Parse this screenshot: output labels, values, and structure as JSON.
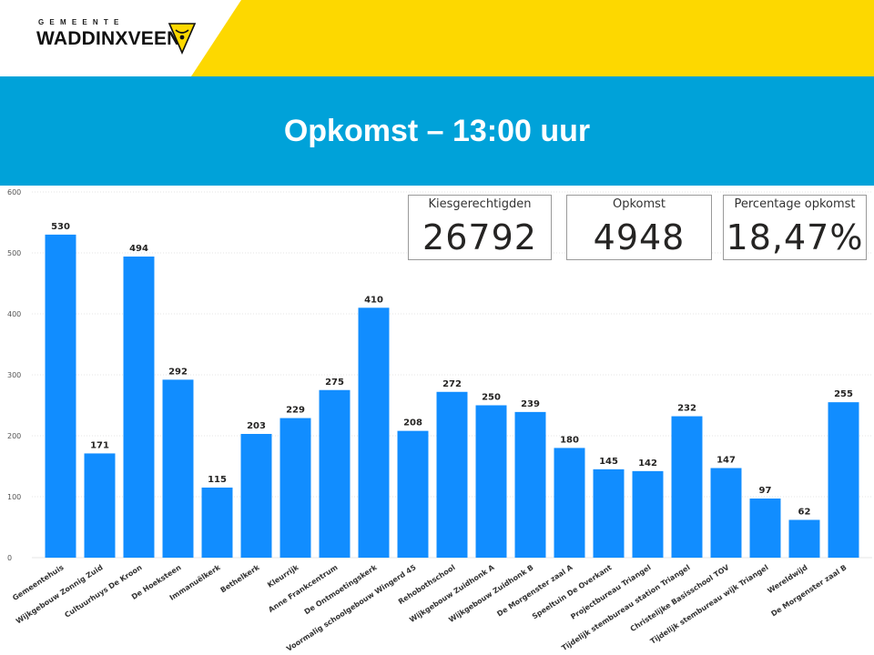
{
  "header": {
    "logo_small_text": "GEMEENTE",
    "logo_name": "WADDINXVEEN",
    "brand_yellow": "#fdd800",
    "brand_blue": "#00a2d9"
  },
  "title": "Opkomst – 13:00 uur",
  "kpis": [
    {
      "label": "Kiesgerechtigden",
      "value": "26792"
    },
    {
      "label": "Opkomst",
      "value": "4948"
    },
    {
      "label": "Percentage opkomst",
      "value": "18,47%"
    }
  ],
  "chart_data": {
    "type": "bar",
    "title": "",
    "xlabel": "",
    "ylabel": "",
    "ylim": [
      0,
      600
    ],
    "yticks": [
      0,
      100,
      200,
      300,
      400,
      500,
      600
    ],
    "grid": true,
    "bar_color": "#118dff",
    "categories": [
      "Gemeentehuis",
      "Wijkgebouw Zonnig Zuid",
      "Cultuurhuys De Kroon",
      "De Hoeksteen",
      "Immanuëlkerk",
      "Bethelkerk",
      "Kleurrijk",
      "Anne Frankcentrum",
      "De Ontmoetingskerk",
      "Voormalig schoolgebouw Wingerd 45",
      "Rehobothschool",
      "Wijkgebouw Zuidhonk A",
      "Wijkgebouw Zuidhonk B",
      "De Morgenster zaal A",
      "Speeltuin De Overkant",
      "Projectbureau Triangel",
      "Tijdelijk stembureau station Triangel",
      "Christelijke Basisschool TOV",
      "Tijdelijk stembureau wijk Triangel",
      "Wereldwijd",
      "De Morgenster zaal B"
    ],
    "values": [
      530,
      171,
      494,
      292,
      115,
      203,
      229,
      275,
      410,
      208,
      272,
      250,
      239,
      180,
      145,
      142,
      232,
      147,
      97,
      62,
      255
    ]
  }
}
